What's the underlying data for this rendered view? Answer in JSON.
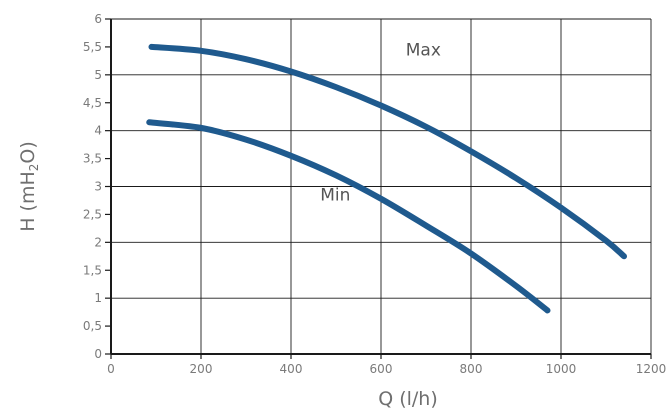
{
  "chart_data": {
    "type": "line",
    "xlabel": "Q (l/h)",
    "ylabel": "H (mH2O)",
    "xlim": [
      0,
      1200
    ],
    "ylim": [
      0,
      6
    ],
    "grid": true,
    "x_ticks": [
      {
        "value": 0,
        "label": "0"
      },
      {
        "value": 200,
        "label": "200"
      },
      {
        "value": 400,
        "label": "400"
      },
      {
        "value": 600,
        "label": "600"
      },
      {
        "value": 800,
        "label": "800"
      },
      {
        "value": 1000,
        "label": "1000"
      },
      {
        "value": 1200,
        "label": "1200"
      }
    ],
    "y_ticks": [
      {
        "value": 0,
        "label": "0"
      },
      {
        "value": 0.5,
        "label": "0,5"
      },
      {
        "value": 1,
        "label": "1"
      },
      {
        "value": 1.5,
        "label": "1,5"
      },
      {
        "value": 2,
        "label": "2"
      },
      {
        "value": 2.5,
        "label": "2,5"
      },
      {
        "value": 3,
        "label": "3"
      },
      {
        "value": 3.5,
        "label": "3,5"
      },
      {
        "value": 4,
        "label": "4"
      },
      {
        "value": 4.5,
        "label": "4,5"
      },
      {
        "value": 5,
        "label": "5"
      },
      {
        "value": 5.5,
        "label": "5,5"
      },
      {
        "value": 6,
        "label": "6"
      }
    ],
    "series": [
      {
        "name": "Max",
        "color": "#1f5a8e",
        "x": [
          90,
          200,
          300,
          400,
          500,
          600,
          700,
          800,
          900,
          1000,
          1100,
          1140
        ],
        "y": [
          5.5,
          5.43,
          5.28,
          5.06,
          4.78,
          4.45,
          4.07,
          3.63,
          3.15,
          2.62,
          2.03,
          1.75
        ]
      },
      {
        "name": "Min",
        "color": "#1f5a8e",
        "x": [
          85,
          200,
          300,
          400,
          500,
          600,
          700,
          800,
          900,
          970
        ],
        "y": [
          4.15,
          4.05,
          3.84,
          3.55,
          3.2,
          2.78,
          2.3,
          1.8,
          1.22,
          0.78
        ]
      }
    ]
  }
}
